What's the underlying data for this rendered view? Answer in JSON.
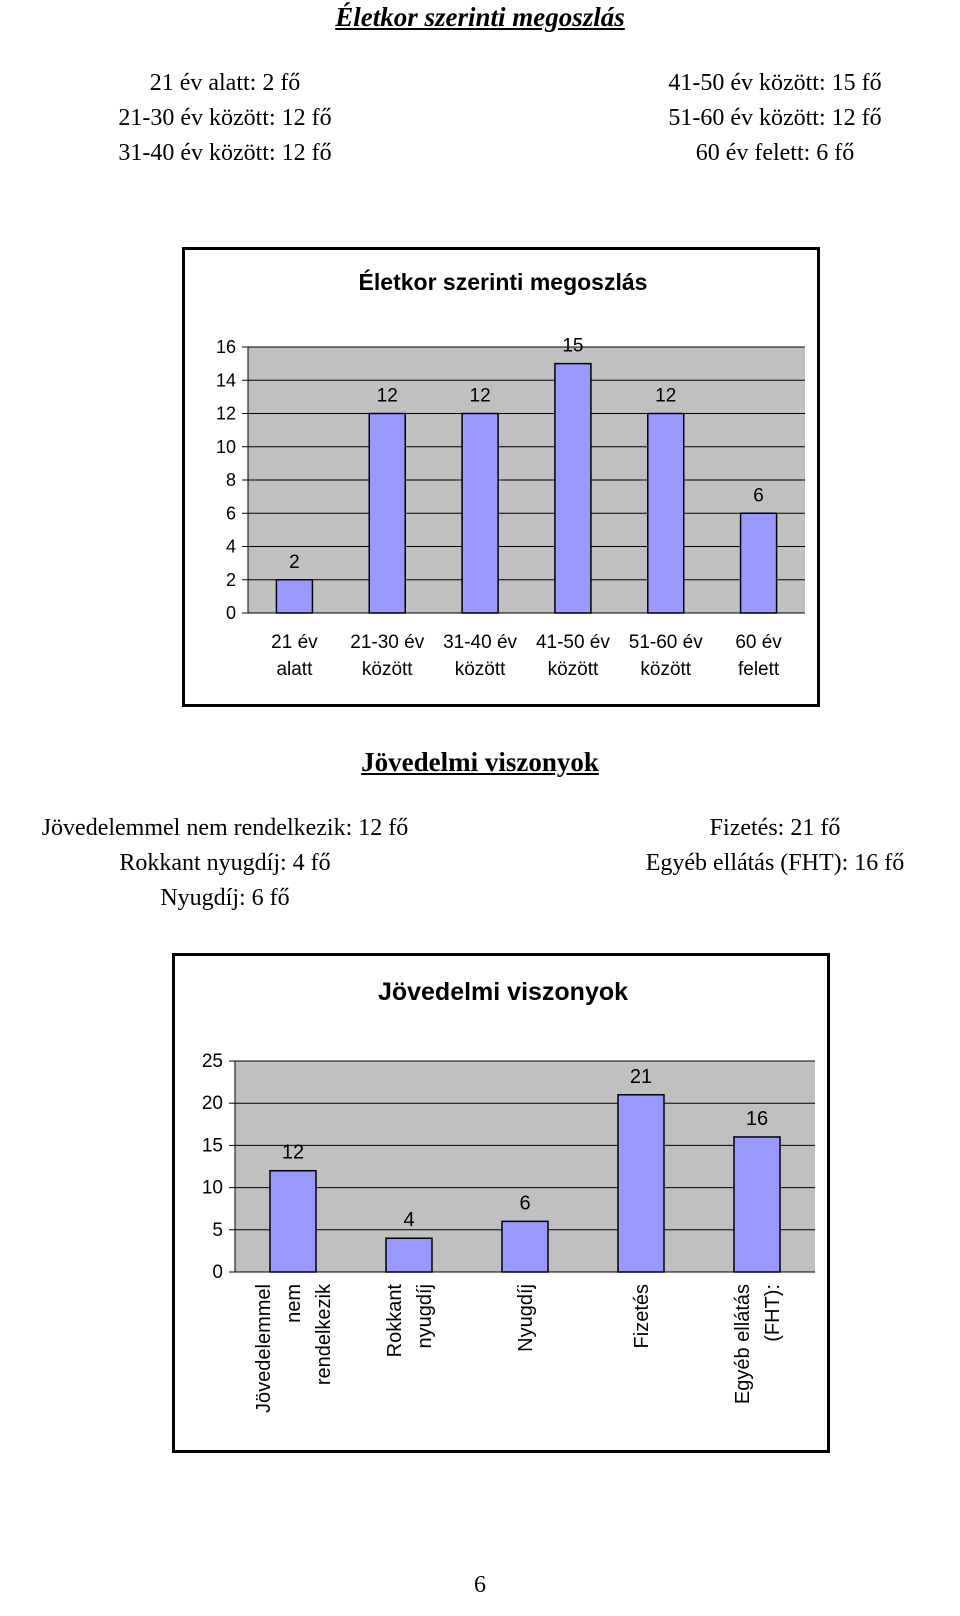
{
  "age_section": {
    "heading": "Életkor szerinti megoszlás",
    "left_lines": [
      "21 év alatt: 2 fő",
      "21-30 év között: 12 fő",
      "31-40 év között: 12 fő"
    ],
    "right_lines": [
      "41-50 év között: 15 fő",
      "51-60 év között: 12 fő",
      "60 év felett: 6 fő"
    ]
  },
  "income_section": {
    "heading": "Jövedelmi viszonyok",
    "left_lines": [
      "Jövedelemmel nem rendelkezik: 12 fő",
      "Rokkant nyugdíj: 4 fő",
      "Nyugdíj: 6 fő"
    ],
    "right_lines": [
      "Fizetés: 21 fő",
      "Egyéb ellátás (FHT): 16 fő"
    ]
  },
  "page_number": "6",
  "colors": {
    "bar_fill": "#9999ff",
    "plot_bg": "#c0c0c0",
    "grid": "#000000"
  },
  "chart_data": [
    {
      "type": "bar",
      "title": "Életkor szerinti megoszlás",
      "categories": [
        [
          "21 év",
          "alatt"
        ],
        [
          "21-30 év",
          "között"
        ],
        [
          "31-40 év",
          "között"
        ],
        [
          "41-50 év",
          "között"
        ],
        [
          "51-60 év",
          "között"
        ],
        [
          "60 év",
          "felett"
        ]
      ],
      "values": [
        2,
        12,
        12,
        15,
        12,
        6
      ],
      "data_labels": [
        "2",
        "12",
        "12",
        "15",
        "12",
        "6"
      ],
      "yticks": [
        "0",
        "2",
        "4",
        "6",
        "8",
        "10",
        "12",
        "14",
        "16"
      ],
      "ylim": [
        0,
        16
      ],
      "grid": true,
      "legend": "none"
    },
    {
      "type": "bar",
      "title": "Jövedelmi viszonyok",
      "categories": [
        [
          "Jövedelemmel",
          "nem",
          "rendelkezik"
        ],
        [
          "Rokkant",
          "nyugdíj"
        ],
        [
          "Nyugdíj"
        ],
        [
          "Fizetés"
        ],
        [
          "Egyéb ellátás",
          "(FHT):"
        ]
      ],
      "values": [
        12,
        4,
        6,
        21,
        16
      ],
      "data_labels": [
        "12",
        "4",
        "6",
        "21",
        "16"
      ],
      "yticks": [
        "0",
        "5",
        "10",
        "15",
        "20",
        "25"
      ],
      "ylim": [
        0,
        25
      ],
      "grid": true,
      "legend": "none",
      "category_label_rotation": "vertical"
    }
  ]
}
